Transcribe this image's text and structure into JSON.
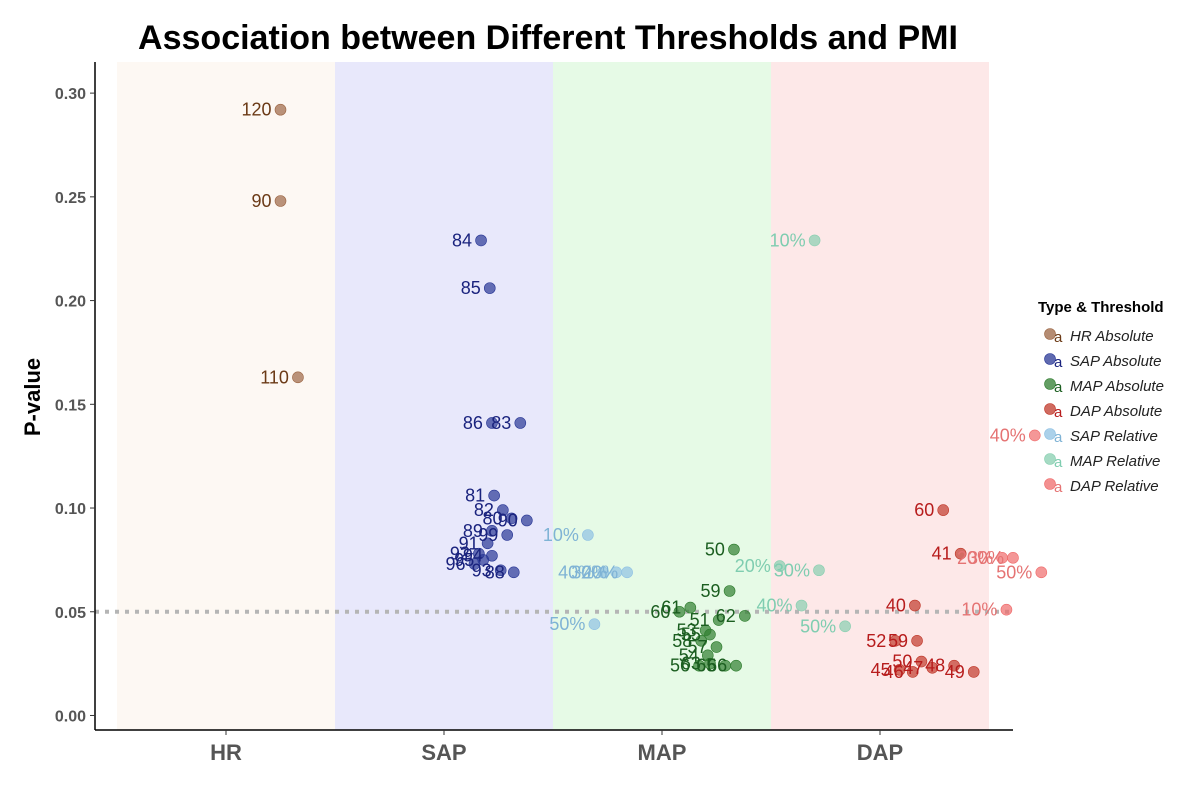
{
  "chart_data": {
    "type": "scatter",
    "title": "Association between Different Thresholds and PMI",
    "xlabel": "",
    "ylabel": "P-value",
    "categories": [
      "HR",
      "SAP",
      "MAP",
      "DAP"
    ],
    "yticks": [
      "0.00",
      "0.05",
      "0.10",
      "0.15",
      "0.20",
      "0.25",
      "0.30"
    ],
    "ylim": [
      -0.007,
      0.315
    ],
    "reference_line": 0.05,
    "legend": {
      "title": "Type & Threshold",
      "position": "right",
      "entries": [
        "HR Absolute",
        "SAP Absolute",
        "MAP Absolute",
        "DAP Absolute",
        "SAP Relative",
        "MAP Relative",
        "DAP Relative"
      ]
    },
    "colors": {
      "HR Absolute": "#9c6644",
      "SAP Absolute": "#2a3896",
      "MAP Absolute": "#2f7d2f",
      "DAP Absolute": "#c0392b",
      "SAP Relative": "#8fc1e3",
      "MAP Relative": "#88cfb0",
      "DAP Relative": "#ef6b6b"
    },
    "label_colors": {
      "HR Absolute": "#6b3a16",
      "SAP Absolute": "#1a237e",
      "MAP Absolute": "#1b5e20",
      "DAP Absolute": "#b71c1c",
      "SAP Relative": "#7fb3d5",
      "MAP Relative": "#7fcdb0",
      "DAP Relative": "#e57373"
    },
    "bands": {
      "HR": "#fdf8f3",
      "SAP": "#e8e8fb",
      "MAP": "#e6fae6",
      "DAP": "#fde8e8"
    },
    "series": [
      {
        "name": "HR Absolute",
        "category": "HR",
        "points": [
          {
            "label": "120",
            "x": 0.25,
            "y": 0.292
          },
          {
            "label": "90",
            "x": 0.25,
            "y": 0.248
          },
          {
            "label": "110",
            "x": 0.33,
            "y": 0.163
          }
        ]
      },
      {
        "name": "SAP Absolute",
        "category": "SAP",
        "points": [
          {
            "label": "84",
            "x": 1.17,
            "y": 0.229
          },
          {
            "label": "85",
            "x": 1.21,
            "y": 0.206
          },
          {
            "label": "86",
            "x": 1.22,
            "y": 0.141
          },
          {
            "label": "83",
            "x": 1.35,
            "y": 0.141
          },
          {
            "label": "81",
            "x": 1.23,
            "y": 0.106
          },
          {
            "label": "82",
            "x": 1.27,
            "y": 0.099
          },
          {
            "label": "80",
            "x": 1.31,
            "y": 0.095
          },
          {
            "label": "90",
            "x": 1.38,
            "y": 0.094
          },
          {
            "label": "89",
            "x": 1.22,
            "y": 0.089
          },
          {
            "label": "99",
            "x": 1.29,
            "y": 0.087
          },
          {
            "label": "91",
            "x": 1.2,
            "y": 0.083
          },
          {
            "label": "92",
            "x": 1.16,
            "y": 0.078
          },
          {
            "label": "94",
            "x": 1.22,
            "y": 0.077
          },
          {
            "label": "96",
            "x": 1.14,
            "y": 0.073
          },
          {
            "label": "95",
            "x": 1.18,
            "y": 0.075
          },
          {
            "label": "93",
            "x": 1.26,
            "y": 0.07
          },
          {
            "label": "88",
            "x": 1.32,
            "y": 0.069
          }
        ]
      },
      {
        "name": "SAP Relative",
        "category": "SAP",
        "points": [
          {
            "label": "10%",
            "x": 1.66,
            "y": 0.087
          },
          {
            "label": "40%",
            "x": 1.73,
            "y": 0.069
          },
          {
            "label": "30%",
            "x": 1.79,
            "y": 0.069
          },
          {
            "label": "20%",
            "x": 1.84,
            "y": 0.069
          },
          {
            "label": "50%",
            "x": 1.69,
            "y": 0.044
          }
        ]
      },
      {
        "name": "MAP Absolute",
        "category": "MAP",
        "points": [
          {
            "label": "50",
            "x": 2.33,
            "y": 0.08
          },
          {
            "label": "59",
            "x": 2.31,
            "y": 0.06
          },
          {
            "label": "60",
            "x": 2.08,
            "y": 0.05
          },
          {
            "label": "61",
            "x": 2.13,
            "y": 0.052
          },
          {
            "label": "62",
            "x": 2.38,
            "y": 0.048
          },
          {
            "label": "51",
            "x": 2.26,
            "y": 0.046
          },
          {
            "label": "53",
            "x": 2.2,
            "y": 0.041
          },
          {
            "label": "55",
            "x": 2.22,
            "y": 0.039
          },
          {
            "label": "58",
            "x": 2.18,
            "y": 0.036
          },
          {
            "label": "57",
            "x": 2.25,
            "y": 0.033
          },
          {
            "label": "54",
            "x": 2.21,
            "y": 0.029
          },
          {
            "label": "56",
            "x": 2.17,
            "y": 0.024
          },
          {
            "label": "63",
            "x": 2.22,
            "y": 0.025
          },
          {
            "label": "65",
            "x": 2.29,
            "y": 0.024
          },
          {
            "label": "66",
            "x": 2.34,
            "y": 0.024
          }
        ]
      },
      {
        "name": "MAP Relative",
        "category": "MAP",
        "points": [
          {
            "label": "10%",
            "x": 2.7,
            "y": 0.229
          },
          {
            "label": "20%",
            "x": 2.54,
            "y": 0.072
          },
          {
            "label": "30%",
            "x": 2.72,
            "y": 0.07
          },
          {
            "label": "40%",
            "x": 2.64,
            "y": 0.053
          },
          {
            "label": "50%",
            "x": 2.84,
            "y": 0.043
          }
        ]
      },
      {
        "name": "DAP Absolute",
        "category": "DAP",
        "points": [
          {
            "label": "60",
            "x": 3.29,
            "y": 0.099
          },
          {
            "label": "41",
            "x": 3.37,
            "y": 0.078
          },
          {
            "label": "40",
            "x": 3.16,
            "y": 0.053
          },
          {
            "label": "52",
            "x": 3.07,
            "y": 0.036
          },
          {
            "label": "59",
            "x": 3.17,
            "y": 0.036
          },
          {
            "label": "50",
            "x": 3.19,
            "y": 0.026
          },
          {
            "label": "45",
            "x": 3.09,
            "y": 0.022
          },
          {
            "label": "46",
            "x": 3.15,
            "y": 0.021
          },
          {
            "label": "47",
            "x": 3.24,
            "y": 0.023
          },
          {
            "label": "48",
            "x": 3.34,
            "y": 0.024
          },
          {
            "label": "49",
            "x": 3.43,
            "y": 0.021
          }
        ]
      },
      {
        "name": "DAP Relative",
        "category": "DAP",
        "points": [
          {
            "label": "40%",
            "x": 3.71,
            "y": 0.135
          },
          {
            "label": "30%",
            "x": 3.61,
            "y": 0.076
          },
          {
            "label": "20%",
            "x": 3.56,
            "y": 0.076
          },
          {
            "label": "50%",
            "x": 3.74,
            "y": 0.069
          },
          {
            "label": "10%",
            "x": 3.58,
            "y": 0.051
          }
        ]
      }
    ]
  }
}
